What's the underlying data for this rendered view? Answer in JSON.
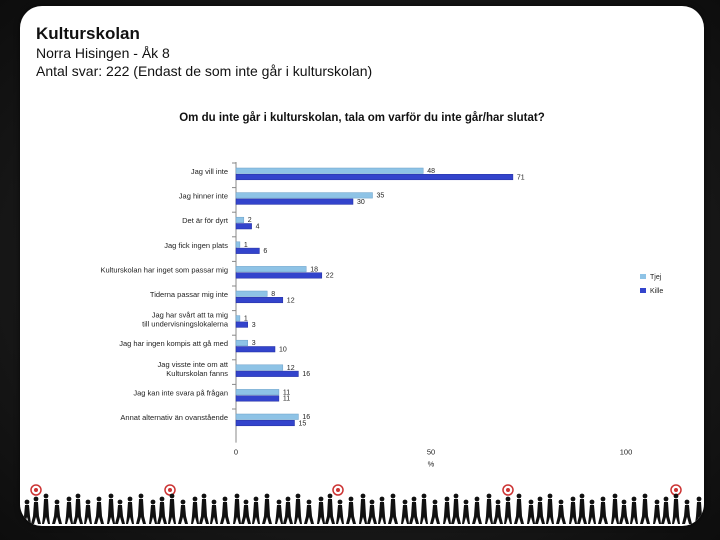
{
  "header": {
    "title": "Kulturskolan",
    "line1": "Norra Hisingen - Åk 8",
    "line2": "Antal svar: 222 (Endast de som inte går i kulturskolan)"
  },
  "colors": {
    "jaj": "#8ec3e6",
    "kille": "#3344cc",
    "background": "#ffffff",
    "frame": "#1a1a1a"
  },
  "chart_data": {
    "type": "bar",
    "orientation": "horizontal",
    "title": "Om du inte går i kulturskolan, tala om varför du inte går/har slutat?",
    "xlabel": "%",
    "xlim": [
      0,
      100
    ],
    "xticks": [
      0,
      50,
      100
    ],
    "legend_position": "right",
    "categories": [
      "Jag vill inte",
      "Jag hinner inte",
      "Det är för dyrt",
      "Jag fick ingen plats",
      "Kulturskolan har inget som passar mig",
      "Tiderna passar mig inte",
      "Jag har svårt att ta mig till undervisningslokalerna",
      "Jag har ingen kompis att gå med",
      "Jag visste inte om att Kulturskolan fanns",
      "Jag kan inte svara på frågan",
      "Annat alternativ än ovanstående"
    ],
    "series": [
      {
        "name": "Tjej",
        "values": [
          48,
          35,
          2,
          1,
          18,
          8,
          1,
          3,
          12,
          11,
          16
        ]
      },
      {
        "name": "Kille",
        "values": [
          71,
          30,
          4,
          6,
          22,
          12,
          3,
          10,
          16,
          11,
          15
        ]
      }
    ]
  }
}
